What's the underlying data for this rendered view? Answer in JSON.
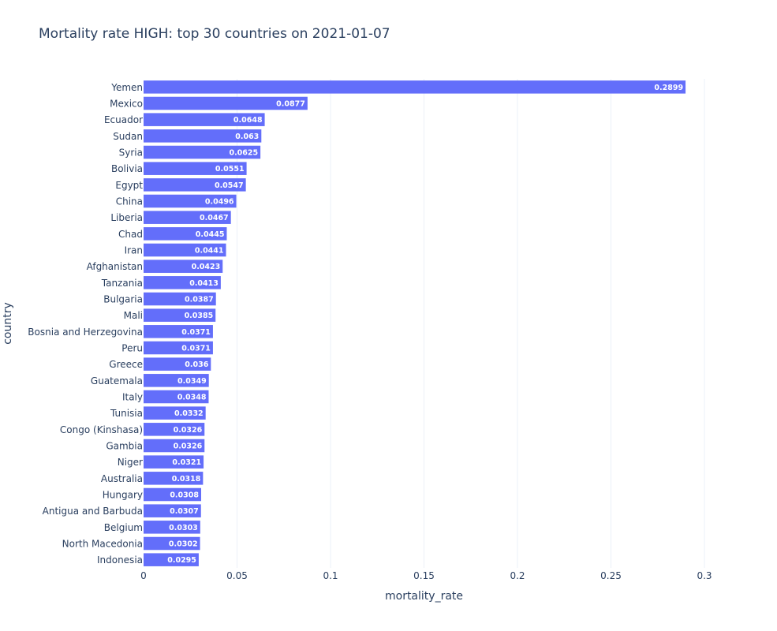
{
  "chart_data": {
    "type": "bar",
    "orientation": "horizontal",
    "title": "Mortality rate HIGH: top 30 countries on 2021-01-07",
    "xlabel": "mortality_rate",
    "ylabel": "country",
    "xlim": [
      0,
      0.3
    ],
    "xticks": [
      "0",
      "0.05",
      "0.1",
      "0.15",
      "0.2",
      "0.25",
      "0.3"
    ],
    "xtick_values": [
      0,
      0.05,
      0.1,
      0.15,
      0.2,
      0.25,
      0.3
    ],
    "grid": true,
    "bar_color": "#636efa",
    "categories": [
      "Yemen",
      "Mexico",
      "Ecuador",
      "Sudan",
      "Syria",
      "Bolivia",
      "Egypt",
      "China",
      "Liberia",
      "Chad",
      "Iran",
      "Afghanistan",
      "Tanzania",
      "Bulgaria",
      "Mali",
      "Bosnia and Herzegovina",
      "Peru",
      "Greece",
      "Guatemala",
      "Italy",
      "Tunisia",
      "Congo (Kinshasa)",
      "Gambia",
      "Niger",
      "Australia",
      "Hungary",
      "Antigua and Barbuda",
      "Belgium",
      "North Macedonia",
      "Indonesia"
    ],
    "values": [
      0.2899,
      0.0877,
      0.0648,
      0.063,
      0.0625,
      0.0551,
      0.0547,
      0.0496,
      0.0467,
      0.0445,
      0.0441,
      0.0423,
      0.0413,
      0.0387,
      0.0385,
      0.0371,
      0.0371,
      0.036,
      0.0349,
      0.0348,
      0.0332,
      0.0326,
      0.0326,
      0.0321,
      0.0318,
      0.0308,
      0.0307,
      0.0303,
      0.0302,
      0.0295
    ],
    "value_labels": [
      "0.2899",
      "0.0877",
      "0.0648",
      "0.063",
      "0.0625",
      "0.0551",
      "0.0547",
      "0.0496",
      "0.0467",
      "0.0445",
      "0.0441",
      "0.0423",
      "0.0413",
      "0.0387",
      "0.0385",
      "0.0371",
      "0.0371",
      "0.036",
      "0.0349",
      "0.0348",
      "0.0332",
      "0.0326",
      "0.0326",
      "0.0321",
      "0.0318",
      "0.0308",
      "0.0307",
      "0.0303",
      "0.0302",
      "0.0295"
    ]
  }
}
